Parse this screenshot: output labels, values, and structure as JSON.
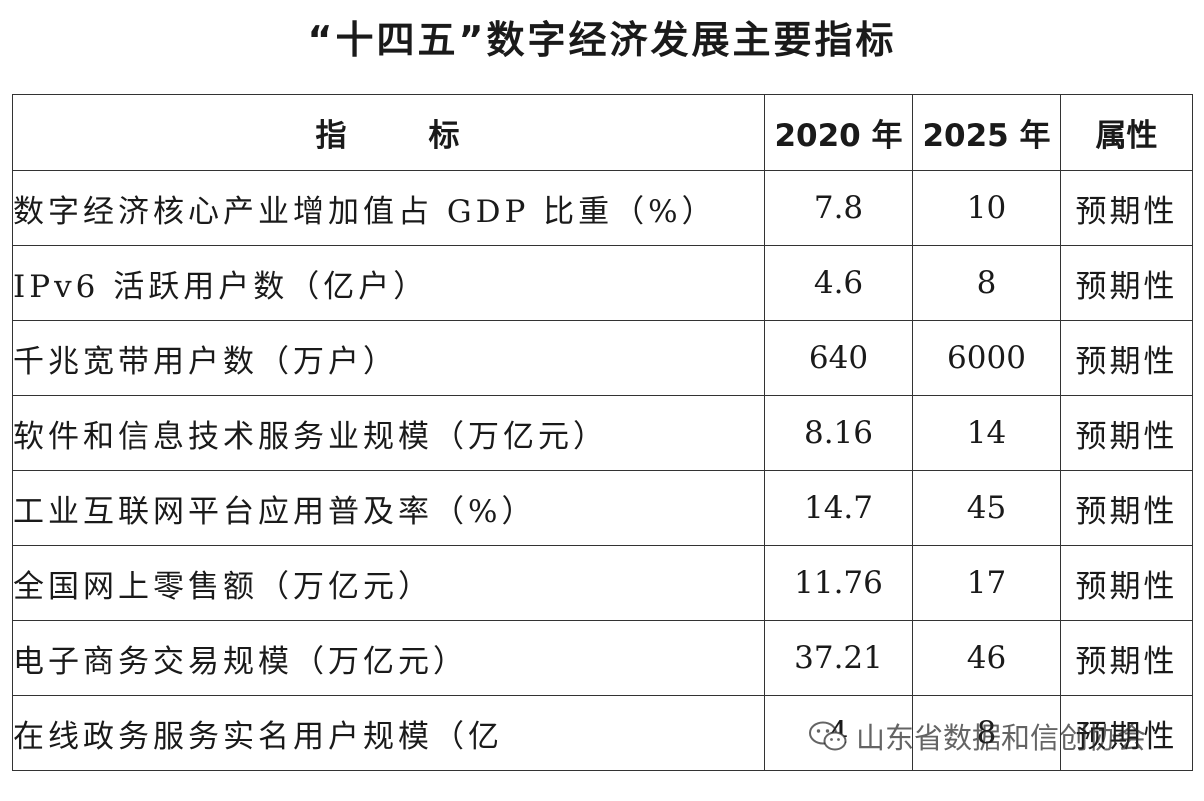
{
  "title": "“十四五”数字经济发展主要指标",
  "table": {
    "headers": {
      "indicator_part1": "指",
      "indicator_part2": "标",
      "year2020": "2020 年",
      "year2025": "2025 年",
      "attribute": "属性"
    },
    "rows": [
      {
        "name": "数字经济核心产业增加值占 GDP 比重（%）",
        "v2020": "7.8",
        "v2025": "10",
        "attr": "预期性"
      },
      {
        "name": "IPv6 活跃用户数（亿户）",
        "v2020": "4.6",
        "v2025": "8",
        "attr": "预期性"
      },
      {
        "name": "千兆宽带用户数（万户）",
        "v2020": "640",
        "v2025": "6000",
        "attr": "预期性"
      },
      {
        "name": "软件和信息技术服务业规模（万亿元）",
        "v2020": "8.16",
        "v2025": "14",
        "attr": "预期性"
      },
      {
        "name": "工业互联网平台应用普及率（%）",
        "v2020": "14.7",
        "v2025": "45",
        "attr": "预期性"
      },
      {
        "name": "全国网上零售额（万亿元）",
        "v2020": "11.76",
        "v2025": "17",
        "attr": "预期性"
      },
      {
        "name": "电子商务交易规模（万亿元）",
        "v2020": "37.21",
        "v2025": "46",
        "attr": "预期性"
      },
      {
        "name": "在线政务服务实名用户规模（亿",
        "v2020": "4",
        "v2025": "8",
        "attr": "预期性"
      }
    ]
  },
  "watermark": {
    "text": "山东省数据和信创协会",
    "icon": "wechat-icon"
  }
}
